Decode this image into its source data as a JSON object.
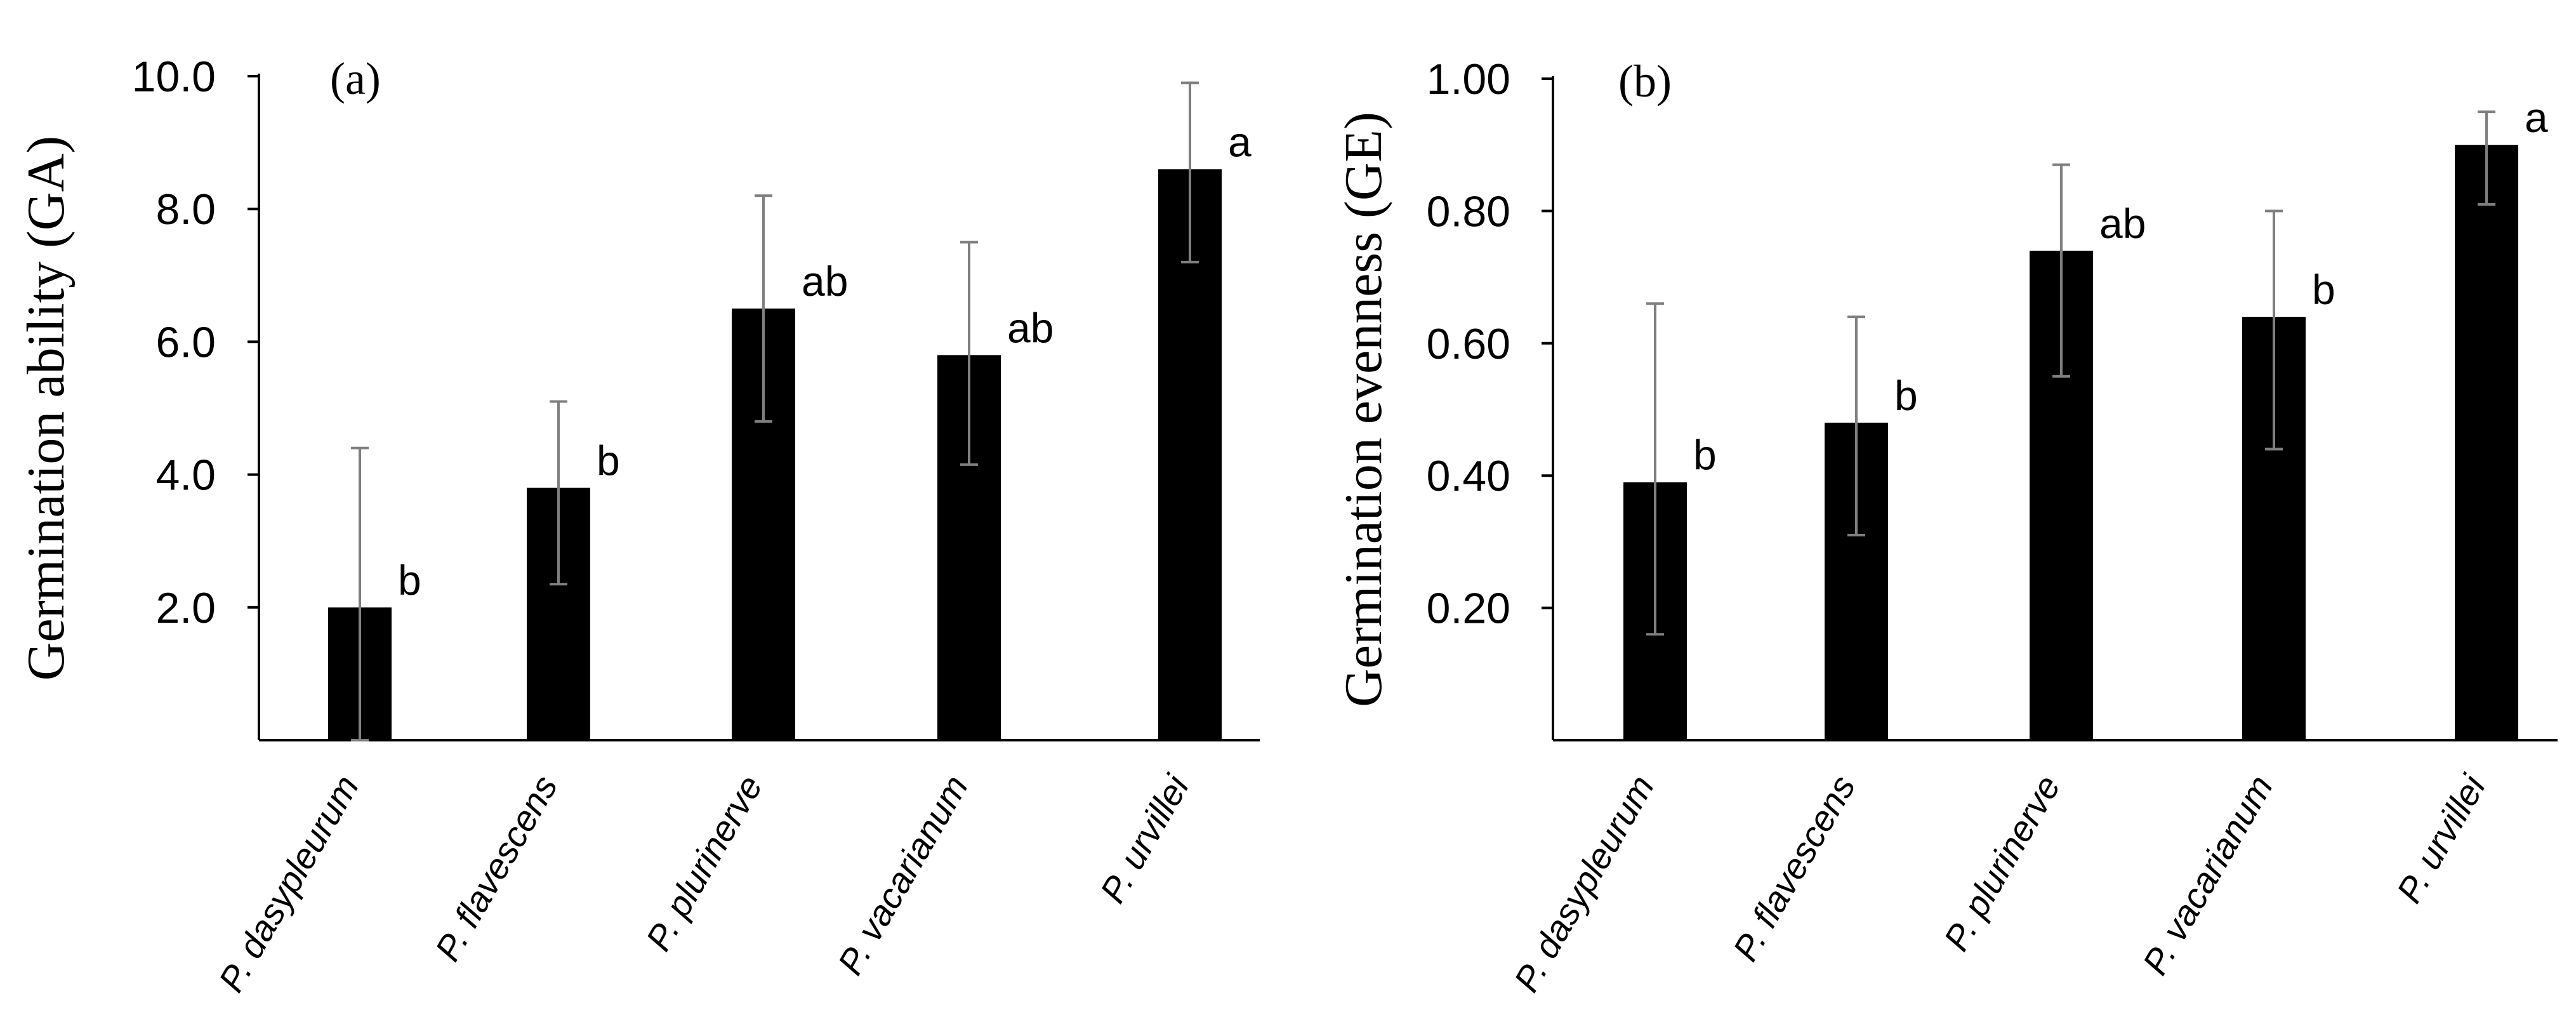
{
  "chart_data": [
    {
      "type": "bar",
      "panel_label": "(a)",
      "title": "",
      "xlabel": "",
      "ylabel": "Germination ability (GA)",
      "ylim": [
        0,
        10.0
      ],
      "yticks": [
        2.0,
        4.0,
        6.0,
        8.0,
        10.0
      ],
      "ytick_labels": [
        "2.0",
        "4.0",
        "6.0",
        "8.0",
        "10.0"
      ],
      "categories": [
        "P. dasypleurum",
        "P. flavescens",
        "P. plurinerve",
        "P. vacarianum",
        "P. urvillei"
      ],
      "values": [
        2.0,
        3.8,
        6.5,
        5.8,
        8.6
      ],
      "error_upper": [
        4.4,
        5.1,
        8.2,
        7.5,
        9.9
      ],
      "error_lower": [
        0.0,
        2.35,
        4.8,
        4.15,
        7.2
      ],
      "significance": [
        "b",
        "b",
        "ab",
        "ab",
        "a"
      ],
      "bar_color": "#000000",
      "error_color": "#7f7f7f"
    },
    {
      "type": "bar",
      "panel_label": "(b)",
      "title": "",
      "xlabel": "",
      "ylabel": "Germination evenness (GE)",
      "ylim": [
        0,
        1.0
      ],
      "yticks": [
        0.2,
        0.4,
        0.6,
        0.8,
        1.0
      ],
      "ytick_labels": [
        "0.20",
        "0.40",
        "0.60",
        "0.80",
        "1.00"
      ],
      "categories": [
        "P. dasypleurum",
        "P. flavescens",
        "P. plurinerve",
        "P. vacarianum",
        "P. urvillei"
      ],
      "values": [
        0.39,
        0.48,
        0.74,
        0.64,
        0.9
      ],
      "error_upper": [
        0.66,
        0.64,
        0.87,
        0.8,
        0.95
      ],
      "error_lower": [
        0.16,
        0.31,
        0.55,
        0.44,
        0.81
      ],
      "significance": [
        "b",
        "b",
        "ab",
        "b",
        "a"
      ],
      "bar_color": "#000000",
      "error_color": "#7f7f7f"
    }
  ]
}
